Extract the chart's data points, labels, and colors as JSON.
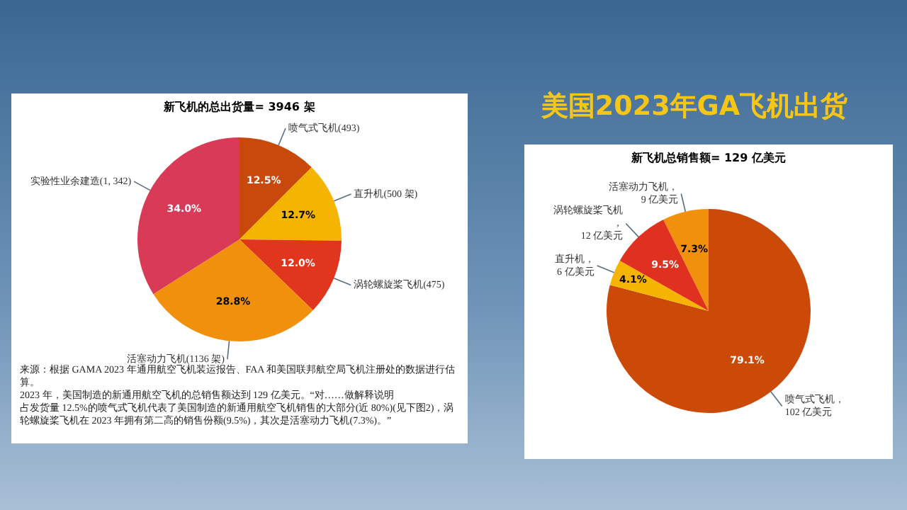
{
  "chart_data": [
    {
      "type": "pie",
      "title": "新飞机的总出货量= 3946 架",
      "categories": [
        "喷气式飞机(493)",
        "直升机(500 架)",
        "涡轮螺旋桨飞机(475)",
        "活塞动力飞机(1136 架)",
        "实验性业余建造(1, 342)"
      ],
      "values": [
        12.5,
        12.7,
        12.0,
        28.8,
        34.0
      ],
      "value_labels": [
        "12.5%",
        "12.7%",
        "12.0%",
        "28.8%",
        "34.0%"
      ],
      "colors": [
        "#c9480c",
        "#f5b400",
        "#e0361e",
        "#f0900c",
        "#d83a58"
      ],
      "legend": false,
      "annotations": [
        "来源：根据 GAMA 2023 年通用航空飞机装运报告、FAA 和美国联邦航空局飞机注册处的数据进行估算。",
        "2023 年，美国制造的新通用航空飞机的总销售额达到 129 亿美元。“对……做解释说明",
        "占发货量 12.5%的喷气式飞机代表了美国制造的新通用航空飞机销售的大部分(近 80%)(见下图2)，涡轮螺旋桨飞机在 2023 年拥有第二高的销售份额(9.5%)，其次是活塞动力飞机(7.3%)。”"
      ]
    },
    {
      "type": "other",
      "title": "美国2023年GA飞机出货"
    },
    {
      "type": "pie",
      "title": "新飞机总销售额= 129 亿美元",
      "categories": [
        "喷气式飞机，102 亿美元",
        "直升机，6 亿美元",
        "涡轮螺旋桨飞机，12 亿美元",
        "活塞动力飞机，9 亿美元"
      ],
      "values": [
        79.1,
        4.1,
        9.5,
        7.3
      ],
      "value_labels": [
        "79.1%",
        "4.1%",
        "9.5%",
        "7.3%"
      ],
      "colors": [
        "#cc4a08",
        "#f5b400",
        "#e03020",
        "#f0900c"
      ],
      "legend": false
    }
  ]
}
